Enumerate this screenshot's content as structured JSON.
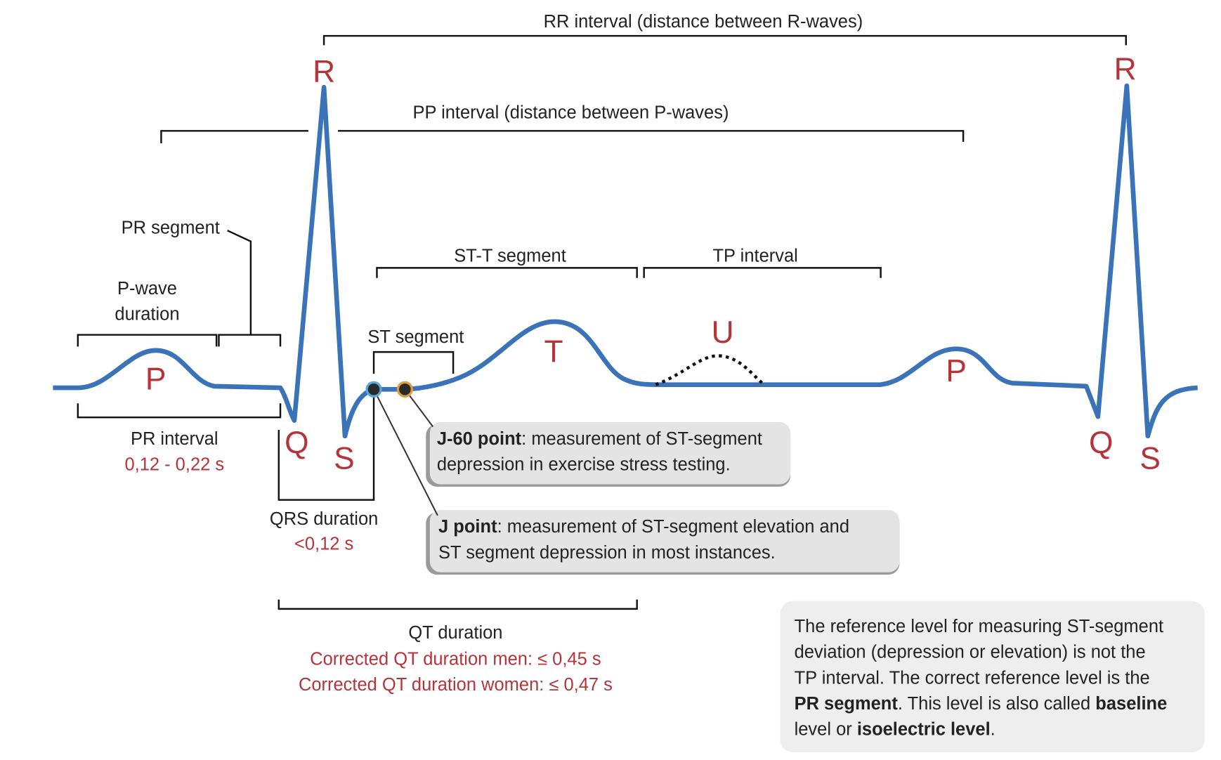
{
  "waves": {
    "p1": "P",
    "q1": "Q",
    "r1": "R",
    "s1": "S",
    "t": "T",
    "u": "U",
    "p2": "P",
    "q2": "Q",
    "r2": "R",
    "s2": "S"
  },
  "labels": {
    "rr_interval": "RR interval (distance between R-waves)",
    "pp_interval": "PP interval (distance between P-waves)",
    "pr_segment": "PR segment",
    "p_wave_duration": [
      "P-wave",
      "duration"
    ],
    "st_t_segment": "ST-T segment",
    "tp_interval": "TP interval",
    "st_segment": "ST segment",
    "pr_interval": "PR interval",
    "pr_interval_value": "0,12 - 0,22 s",
    "qrs_duration": "QRS duration",
    "qrs_duration_value": "<0,12 s",
    "qt_duration": "QT duration",
    "qt_men": "Corrected QT duration men: ≤ 0,45 s",
    "qt_women": "Corrected QT duration women: ≤ 0,47 s"
  },
  "callouts": {
    "j60": {
      "term": "J-60 point",
      "lines": [
        ": measurement of ST-segment",
        "depression in exercise stress testing."
      ]
    },
    "j": {
      "term": "J point",
      "lines": [
        ": measurement of ST-segment elevation and",
        "ST segment depression in most instances."
      ]
    }
  },
  "note": {
    "line1": "The reference level for measuring ST-segment",
    "line2": "deviation (depression or elevation) is not the",
    "line3": "TP interval. The correct reference level is the",
    "line4_bold": "PR segment",
    "line4_rest": ". This level is also called ",
    "line4_bold2": "baseline",
    "line5_rest": "level or ",
    "line5_bold": "isoelectric level",
    "line5_end": "."
  }
}
